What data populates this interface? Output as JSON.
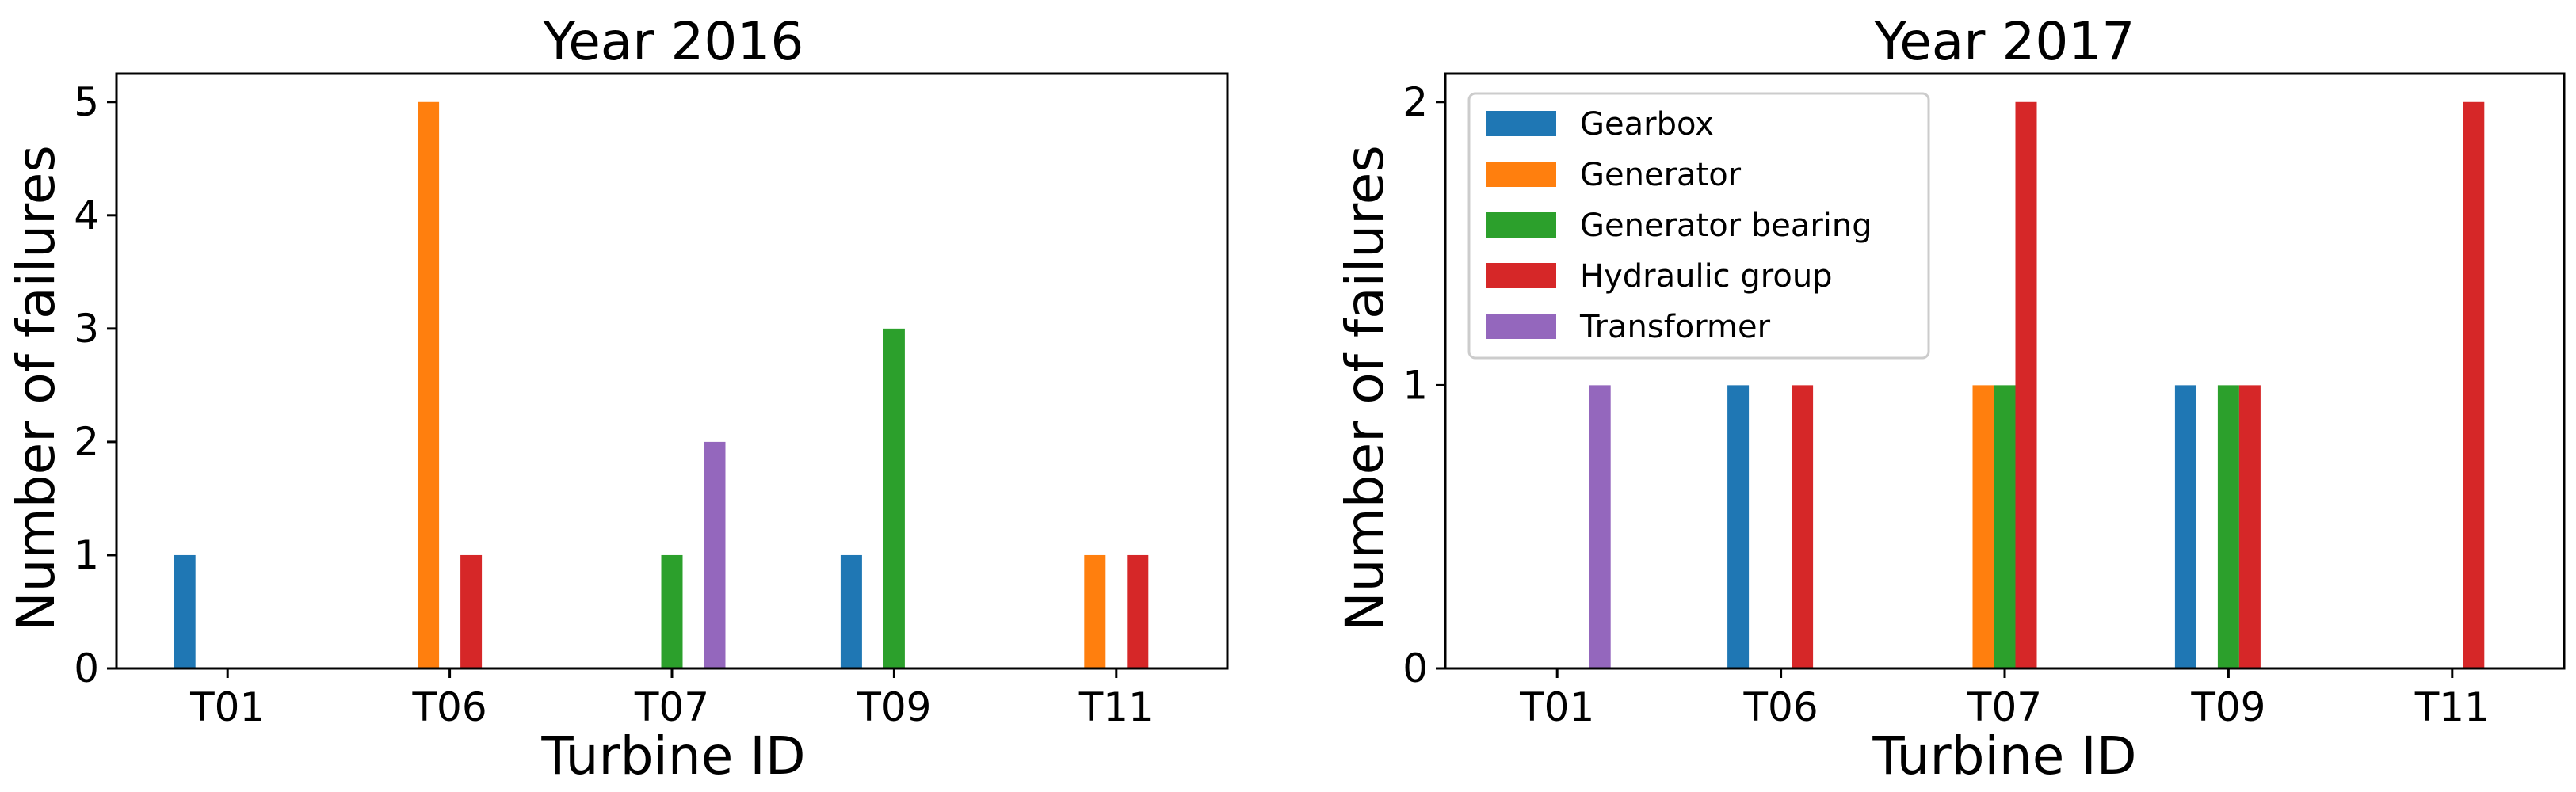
{
  "chart_data": [
    {
      "type": "bar",
      "title": "Year 2016",
      "xlabel": "Turbine ID",
      "ylabel": "Number of failures",
      "categories": [
        "T01",
        "T06",
        "T07",
        "T09",
        "T11"
      ],
      "ylim": [
        0,
        5.25
      ],
      "yticks": [
        0,
        1,
        2,
        3,
        4,
        5
      ],
      "series": [
        {
          "name": "Gearbox",
          "color": "#1f77b4",
          "values": [
            1,
            0,
            0,
            1,
            0
          ]
        },
        {
          "name": "Generator",
          "color": "#ff7f0e",
          "values": [
            0,
            5,
            0,
            0,
            1
          ]
        },
        {
          "name": "Generator bearing",
          "color": "#2ca02c",
          "values": [
            0,
            0,
            1,
            3,
            0
          ]
        },
        {
          "name": "Hydraulic group",
          "color": "#d62728",
          "values": [
            0,
            1,
            0,
            0,
            1
          ]
        },
        {
          "name": "Transformer",
          "color": "#9467bd",
          "values": [
            0,
            0,
            2,
            0,
            0
          ]
        }
      ],
      "legend": null
    },
    {
      "type": "bar",
      "title": "Year 2017",
      "xlabel": "Turbine ID",
      "ylabel": "Number of failures",
      "categories": [
        "T01",
        "T06",
        "T07",
        "T09",
        "T11"
      ],
      "ylim": [
        0,
        2.1
      ],
      "yticks": [
        0,
        1,
        2
      ],
      "series": [
        {
          "name": "Gearbox",
          "color": "#1f77b4",
          "values": [
            0,
            1,
            0,
            1,
            0
          ]
        },
        {
          "name": "Generator",
          "color": "#ff7f0e",
          "values": [
            0,
            0,
            1,
            0,
            0
          ]
        },
        {
          "name": "Generator bearing",
          "color": "#2ca02c",
          "values": [
            0,
            0,
            1,
            1,
            0
          ]
        },
        {
          "name": "Hydraulic group",
          "color": "#d62728",
          "values": [
            0,
            1,
            2,
            1,
            2
          ]
        },
        {
          "name": "Transformer",
          "color": "#9467bd",
          "values": [
            1,
            0,
            0,
            0,
            0
          ]
        }
      ],
      "legend": "top-left"
    }
  ]
}
